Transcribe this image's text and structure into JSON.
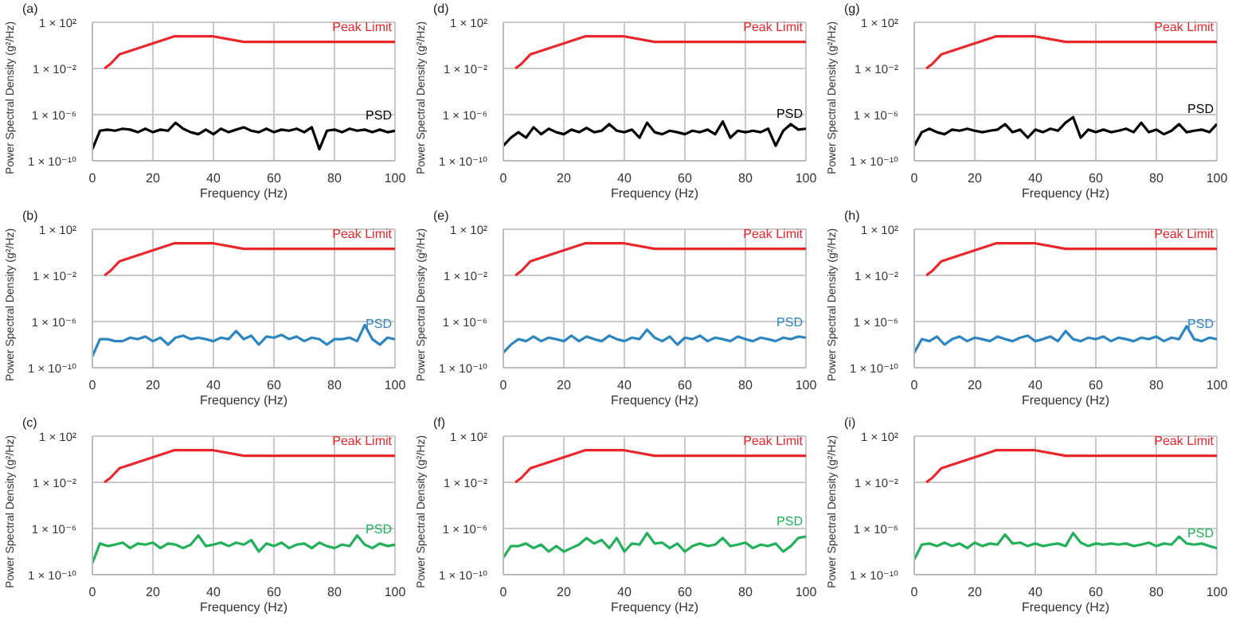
{
  "chart_data": [
    {
      "type": "line",
      "title": "(a)",
      "xlabel": "Frequency (Hz)",
      "ylabel": "Power Spectral Density (g²/Hz)",
      "xlim": [
        0,
        100
      ],
      "xticks": [
        0,
        20,
        40,
        60,
        80,
        100
      ],
      "ylim": [
        1e-10,
        100
      ],
      "yticks": [
        {
          "value": 1e-10,
          "label": "1 × 10⁻¹⁰"
        },
        {
          "value": 1e-06,
          "label": "1 × 10⁻⁶"
        },
        {
          "value": 0.01,
          "label": "1 × 10⁻²"
        },
        {
          "value": 100,
          "label": "1 × 10²"
        }
      ],
      "log": "y",
      "grid": true,
      "series": [
        {
          "name": "Peak Limit",
          "color": "#e8262b",
          "x": [
            4,
            6,
            9,
            27,
            40,
            50,
            100
          ],
          "values": [
            0.01,
            0.025,
            0.17,
            6,
            6,
            2,
            2
          ]
        },
        {
          "name": "PSD",
          "color": "#000000",
          "x": [
            0,
            2.5,
            5,
            7.5,
            10,
            12.5,
            15,
            17.5,
            20,
            22.5,
            25,
            27.5,
            30,
            32.5,
            35,
            37.5,
            40,
            42.5,
            45,
            47.5,
            50,
            52.5,
            55,
            57.5,
            60,
            62.5,
            65,
            67.5,
            70,
            72.5,
            75,
            77.5,
            80,
            82.5,
            85,
            87.5,
            90,
            92.5,
            95,
            97.5,
            100
          ],
          "values": [
            1e-09,
            4e-08,
            5e-08,
            4e-08,
            6e-08,
            5e-08,
            3e-08,
            6e-08,
            3e-08,
            5e-08,
            4e-08,
            2e-07,
            6e-08,
            3e-08,
            2e-08,
            5e-08,
            2e-08,
            6e-08,
            3e-08,
            5e-08,
            8e-08,
            4e-08,
            3e-08,
            6e-08,
            3e-08,
            5e-08,
            4e-08,
            6e-08,
            3e-08,
            8e-08,
            1e-09,
            4e-08,
            5e-08,
            3e-08,
            6e-08,
            4e-08,
            5e-08,
            3e-08,
            5e-08,
            3e-08,
            4e-08
          ]
        }
      ]
    },
    {
      "type": "line",
      "title": "(d)",
      "xlabel": "Frequency (Hz)",
      "ylabel": "Power Spectral Density (g²/Hz)",
      "xlim": [
        0,
        100
      ],
      "xticks": [
        0,
        20,
        40,
        60,
        80,
        100
      ],
      "ylim": [
        1e-10,
        100
      ],
      "yticks": [
        {
          "value": 1e-10,
          "label": "1 × 10⁻¹⁰"
        },
        {
          "value": 1e-06,
          "label": "1 × 10⁻⁶"
        },
        {
          "value": 0.01,
          "label": "1 × 10⁻²"
        },
        {
          "value": 100,
          "label": "1 × 10²"
        }
      ],
      "log": "y",
      "grid": true,
      "series": [
        {
          "name": "Peak Limit",
          "color": "#e8262b",
          "x": [
            4,
            6,
            9,
            27,
            40,
            50,
            100
          ],
          "values": [
            0.01,
            0.025,
            0.17,
            6,
            6,
            2,
            2
          ]
        },
        {
          "name": "PSD",
          "color": "#000000",
          "x": [
            0,
            2.5,
            5,
            7.5,
            10,
            12.5,
            15,
            17.5,
            20,
            22.5,
            25,
            27.5,
            30,
            32.5,
            35,
            37.5,
            40,
            42.5,
            45,
            47.5,
            50,
            52.5,
            55,
            57.5,
            60,
            62.5,
            65,
            67.5,
            70,
            72.5,
            75,
            77.5,
            80,
            82.5,
            85,
            87.5,
            90,
            92.5,
            95,
            97.5,
            100
          ],
          "values": [
            2e-09,
            1e-08,
            3e-08,
            1e-08,
            8e-08,
            2e-08,
            6e-08,
            3e-08,
            2e-08,
            5e-08,
            3e-08,
            7e-08,
            3e-08,
            4e-08,
            1.5e-07,
            4e-08,
            3e-08,
            5e-08,
            1e-08,
            2e-07,
            3e-08,
            2e-08,
            4e-08,
            3e-08,
            2e-08,
            4e-08,
            3e-08,
            5e-08,
            2e-08,
            2.5e-07,
            1e-08,
            4e-08,
            3e-08,
            4e-08,
            3e-08,
            6e-08,
            2e-09,
            4e-08,
            1.5e-07,
            5e-08,
            6e-08
          ]
        }
      ]
    },
    {
      "type": "line",
      "title": "(g)",
      "xlabel": "Frequency (Hz)",
      "ylabel": "Power Spectral Density (g²/Hz)",
      "xlim": [
        0,
        100
      ],
      "xticks": [
        0,
        20,
        40,
        60,
        80,
        100
      ],
      "ylim": [
        1e-10,
        100
      ],
      "yticks": [
        {
          "value": 1e-10,
          "label": "1 × 10⁻¹⁰"
        },
        {
          "value": 1e-06,
          "label": "1 × 10⁻⁶"
        },
        {
          "value": 0.01,
          "label": "1 × 10⁻²"
        },
        {
          "value": 100,
          "label": "1 × 10²"
        }
      ],
      "log": "y",
      "grid": true,
      "series": [
        {
          "name": "Peak Limit",
          "color": "#e8262b",
          "x": [
            4,
            6,
            9,
            27,
            40,
            50,
            100
          ],
          "values": [
            0.01,
            0.025,
            0.17,
            6,
            6,
            2,
            2
          ]
        },
        {
          "name": "PSD",
          "color": "#000000",
          "x": [
            0,
            2.5,
            5,
            7.5,
            10,
            12.5,
            15,
            17.5,
            20,
            22.5,
            25,
            27.5,
            30,
            32.5,
            35,
            37.5,
            40,
            42.5,
            45,
            47.5,
            50,
            52.5,
            55,
            57.5,
            60,
            62.5,
            65,
            67.5,
            70,
            72.5,
            75,
            77.5,
            80,
            82.5,
            85,
            87.5,
            90,
            92.5,
            95,
            97.5,
            100
          ],
          "values": [
            2e-09,
            3e-08,
            6e-08,
            3e-08,
            2e-08,
            5e-08,
            4e-08,
            6e-08,
            4e-08,
            3e-08,
            4e-08,
            5e-08,
            1.5e-07,
            3e-08,
            5e-08,
            1e-08,
            5e-08,
            3e-08,
            6e-08,
            4e-08,
            2e-07,
            6e-07,
            1e-08,
            5e-08,
            3e-08,
            5e-08,
            3e-08,
            4e-08,
            6e-08,
            3e-08,
            2e-07,
            3e-08,
            5e-08,
            2e-08,
            4e-08,
            1.5e-07,
            3e-08,
            4e-08,
            5e-08,
            3e-08,
            1.5e-07
          ]
        }
      ]
    },
    {
      "type": "line",
      "title": "(b)",
      "xlabel": "Frequency (Hz)",
      "ylabel": "Power Spectral Density (g²/Hz)",
      "xlim": [
        0,
        100
      ],
      "xticks": [
        0,
        20,
        40,
        60,
        80,
        100
      ],
      "ylim": [
        1e-10,
        100
      ],
      "yticks": [
        {
          "value": 1e-10,
          "label": "1 × 10⁻¹⁰"
        },
        {
          "value": 1e-06,
          "label": "1 × 10⁻⁶"
        },
        {
          "value": 0.01,
          "label": "1 × 10⁻²"
        },
        {
          "value": 100,
          "label": "1 × 10²"
        }
      ],
      "log": "y",
      "grid": true,
      "series": [
        {
          "name": "Peak Limit",
          "color": "#e8262b",
          "x": [
            4,
            6,
            9,
            27,
            40,
            50,
            100
          ],
          "values": [
            0.01,
            0.025,
            0.17,
            6,
            6,
            2,
            2
          ]
        },
        {
          "name": "PSD",
          "color": "#2e86c1",
          "x": [
            0,
            2.5,
            5,
            7.5,
            10,
            12.5,
            15,
            17.5,
            20,
            22.5,
            25,
            27.5,
            30,
            32.5,
            35,
            37.5,
            40,
            42.5,
            45,
            47.5,
            50,
            52.5,
            55,
            57.5,
            60,
            62.5,
            65,
            67.5,
            70,
            72.5,
            75,
            77.5,
            80,
            82.5,
            85,
            87.5,
            90,
            92.5,
            95,
            97.5,
            100
          ],
          "values": [
            1e-09,
            3e-08,
            3e-08,
            2e-08,
            2e-08,
            4e-08,
            3e-08,
            5e-08,
            2e-08,
            4e-08,
            1e-08,
            4e-08,
            6e-08,
            3e-08,
            4e-08,
            3e-08,
            2e-08,
            4e-08,
            3e-08,
            1.5e-07,
            3e-08,
            6e-08,
            1e-08,
            5e-08,
            4e-08,
            7e-08,
            3e-08,
            5e-08,
            2e-08,
            4e-08,
            3e-08,
            1e-08,
            3e-08,
            3e-08,
            4e-08,
            2e-08,
            5e-07,
            3e-08,
            1e-08,
            4e-08,
            3e-08
          ]
        }
      ]
    },
    {
      "type": "line",
      "title": "(e)",
      "xlabel": "Frequency (Hz)",
      "ylabel": "Power Spectral Density (g²/Hz)",
      "xlim": [
        0,
        100
      ],
      "xticks": [
        0,
        20,
        40,
        60,
        80,
        100
      ],
      "ylim": [
        1e-10,
        100
      ],
      "yticks": [
        {
          "value": 1e-10,
          "label": "1 × 10⁻¹⁰"
        },
        {
          "value": 1e-06,
          "label": "1 × 10⁻⁶"
        },
        {
          "value": 0.01,
          "label": "1 × 10⁻²"
        },
        {
          "value": 100,
          "label": "1 × 10²"
        }
      ],
      "log": "y",
      "grid": true,
      "series": [
        {
          "name": "Peak Limit",
          "color": "#e8262b",
          "x": [
            4,
            6,
            9,
            27,
            40,
            50,
            100
          ],
          "values": [
            0.01,
            0.025,
            0.17,
            6,
            6,
            2,
            2
          ]
        },
        {
          "name": "PSD",
          "color": "#2e86c1",
          "x": [
            0,
            2.5,
            5,
            7.5,
            10,
            12.5,
            15,
            17.5,
            20,
            22.5,
            25,
            27.5,
            30,
            32.5,
            35,
            37.5,
            40,
            42.5,
            45,
            47.5,
            50,
            52.5,
            55,
            57.5,
            60,
            62.5,
            65,
            67.5,
            70,
            72.5,
            75,
            77.5,
            80,
            82.5,
            85,
            87.5,
            90,
            92.5,
            95,
            97.5,
            100
          ],
          "values": [
            2e-09,
            1e-08,
            3e-08,
            2e-08,
            5e-08,
            2e-08,
            4e-08,
            3e-08,
            2e-08,
            6e-08,
            2e-08,
            5e-08,
            3e-08,
            2e-08,
            6e-08,
            3e-08,
            2e-08,
            4e-08,
            3e-08,
            2e-07,
            4e-08,
            2e-08,
            5e-08,
            1e-08,
            4e-08,
            3e-08,
            6e-08,
            2e-08,
            4e-08,
            3e-08,
            2e-08,
            5e-08,
            3e-08,
            2e-08,
            4e-08,
            3e-08,
            2e-08,
            4e-08,
            3e-08,
            5e-08,
            4e-08
          ]
        }
      ]
    },
    {
      "type": "line",
      "title": "(h)",
      "xlabel": "Frequency (Hz)",
      "ylabel": "Power Spectral Density (g²/Hz)",
      "xlim": [
        0,
        100
      ],
      "xticks": [
        0,
        20,
        40,
        60,
        80,
        100
      ],
      "ylim": [
        1e-10,
        100
      ],
      "yticks": [
        {
          "value": 1e-10,
          "label": "1 × 10⁻¹⁰"
        },
        {
          "value": 1e-06,
          "label": "1 × 10⁻⁶"
        },
        {
          "value": 0.01,
          "label": "1 × 10⁻²"
        },
        {
          "value": 100,
          "label": "1 × 10²"
        }
      ],
      "log": "y",
      "grid": true,
      "series": [
        {
          "name": "Peak Limit",
          "color": "#e8262b",
          "x": [
            4,
            6,
            9,
            27,
            40,
            50,
            100
          ],
          "values": [
            0.01,
            0.025,
            0.17,
            6,
            6,
            2,
            2
          ]
        },
        {
          "name": "PSD",
          "color": "#2e86c1",
          "x": [
            0,
            2.5,
            5,
            7.5,
            10,
            12.5,
            15,
            17.5,
            20,
            22.5,
            25,
            27.5,
            30,
            32.5,
            35,
            37.5,
            40,
            42.5,
            45,
            47.5,
            50,
            52.5,
            55,
            57.5,
            60,
            62.5,
            65,
            67.5,
            70,
            72.5,
            75,
            77.5,
            80,
            82.5,
            85,
            87.5,
            90,
            92.5,
            95,
            97.5,
            100
          ],
          "values": [
            2e-09,
            3e-08,
            2e-08,
            5e-08,
            1e-08,
            3e-08,
            5e-08,
            2e-08,
            4e-08,
            3e-08,
            2e-08,
            5e-08,
            3e-08,
            2e-08,
            4e-08,
            6e-08,
            2e-08,
            3e-08,
            5e-08,
            2e-08,
            1.5e-07,
            3e-08,
            2e-08,
            4e-08,
            3e-08,
            5e-08,
            2e-08,
            4e-08,
            3e-08,
            2e-08,
            4e-08,
            3e-08,
            5e-08,
            2e-08,
            4e-08,
            3e-08,
            4e-07,
            3e-08,
            2e-08,
            4e-08,
            3e-08
          ]
        }
      ]
    },
    {
      "type": "line",
      "title": "(c)",
      "xlabel": "Frequency (Hz)",
      "ylabel": "Power Spectral Density (g²/Hz)",
      "xlim": [
        0,
        100
      ],
      "xticks": [
        0,
        20,
        40,
        60,
        80,
        100
      ],
      "ylim": [
        1e-10,
        100
      ],
      "yticks": [
        {
          "value": 1e-10,
          "label": "1 × 10⁻¹⁰"
        },
        {
          "value": 1e-06,
          "label": "1 × 10⁻⁶"
        },
        {
          "value": 0.01,
          "label": "1 × 10⁻²"
        },
        {
          "value": 100,
          "label": "1 × 10²"
        }
      ],
      "log": "y",
      "grid": true,
      "series": [
        {
          "name": "Peak Limit",
          "color": "#e8262b",
          "x": [
            4,
            6,
            9,
            27,
            40,
            50,
            100
          ],
          "values": [
            0.01,
            0.025,
            0.17,
            6,
            6,
            2,
            2
          ]
        },
        {
          "name": "PSD",
          "color": "#22b05b",
          "x": [
            0,
            2.5,
            5,
            7.5,
            10,
            12.5,
            15,
            17.5,
            20,
            22.5,
            25,
            27.5,
            30,
            32.5,
            35,
            37.5,
            40,
            42.5,
            45,
            47.5,
            50,
            52.5,
            55,
            57.5,
            60,
            62.5,
            65,
            67.5,
            70,
            72.5,
            75,
            77.5,
            80,
            82.5,
            85,
            87.5,
            90,
            92.5,
            95,
            97.5,
            100
          ],
          "values": [
            1e-09,
            5e-08,
            3e-08,
            4e-08,
            6e-08,
            2e-08,
            5e-08,
            4e-08,
            6e-08,
            2e-08,
            5e-08,
            4e-08,
            2e-08,
            4e-08,
            2.5e-07,
            3e-08,
            4e-08,
            6e-08,
            3e-08,
            6e-08,
            4e-08,
            1e-07,
            1e-08,
            5e-08,
            3e-08,
            6e-08,
            2e-08,
            4e-08,
            5e-08,
            2e-08,
            6e-08,
            3e-08,
            2e-08,
            4e-08,
            3e-08,
            2.5e-07,
            4e-08,
            2e-08,
            5e-08,
            3e-08,
            4e-08
          ]
        }
      ]
    },
    {
      "type": "line",
      "title": "(f)",
      "xlabel": "Frequency (Hz)",
      "ylabel": "Power Spectral Density (g²/Hz)",
      "xlim": [
        0,
        100
      ],
      "xticks": [
        0,
        20,
        40,
        60,
        80,
        100
      ],
      "ylim": [
        1e-10,
        100
      ],
      "yticks": [
        {
          "value": 1e-10,
          "label": "1 × 10⁻¹⁰"
        },
        {
          "value": 1e-06,
          "label": "1 × 10⁻⁶"
        },
        {
          "value": 0.01,
          "label": "1 × 10⁻²"
        },
        {
          "value": 100,
          "label": "1 × 10²"
        }
      ],
      "log": "y",
      "grid": true,
      "series": [
        {
          "name": "Peak Limit",
          "color": "#e8262b",
          "x": [
            4,
            6,
            9,
            27,
            40,
            50,
            100
          ],
          "values": [
            0.01,
            0.025,
            0.17,
            6,
            6,
            2,
            2
          ]
        },
        {
          "name": "PSD",
          "color": "#22b05b",
          "x": [
            0,
            2.5,
            5,
            7.5,
            10,
            12.5,
            15,
            17.5,
            20,
            22.5,
            25,
            27.5,
            30,
            32.5,
            35,
            37.5,
            40,
            42.5,
            45,
            47.5,
            50,
            52.5,
            55,
            57.5,
            60,
            62.5,
            65,
            67.5,
            70,
            72.5,
            75,
            77.5,
            80,
            82.5,
            85,
            87.5,
            90,
            92.5,
            95,
            97.5,
            100
          ],
          "values": [
            3e-09,
            3e-08,
            3e-08,
            5e-08,
            2e-08,
            4e-08,
            1e-08,
            3e-08,
            1e-08,
            2e-08,
            4e-08,
            1.5e-07,
            5e-08,
            1e-07,
            2e-08,
            1.5e-07,
            1e-08,
            5e-08,
            4e-08,
            4e-07,
            5e-08,
            6e-08,
            2e-08,
            5e-08,
            1e-08,
            3e-08,
            5e-08,
            3e-08,
            4e-08,
            1.5e-07,
            3e-08,
            4e-08,
            6e-08,
            2e-08,
            4e-08,
            3e-08,
            5e-08,
            1e-08,
            3e-08,
            1.5e-07,
            2e-07
          ]
        }
      ]
    },
    {
      "type": "line",
      "title": "(i)",
      "xlabel": "Frequency (Hz)",
      "ylabel": "Power Spectral Density (g²/Hz)",
      "xlim": [
        0,
        100
      ],
      "xticks": [
        0,
        20,
        40,
        60,
        80,
        100
      ],
      "ylim": [
        1e-10,
        100
      ],
      "yticks": [
        {
          "value": 1e-10,
          "label": "1 × 10⁻¹⁰"
        },
        {
          "value": 1e-06,
          "label": "1 × 10⁻⁶"
        },
        {
          "value": 0.01,
          "label": "1 × 10⁻²"
        },
        {
          "value": 100,
          "label": "1 × 10²"
        }
      ],
      "log": "y",
      "grid": true,
      "series": [
        {
          "name": "Peak Limit",
          "color": "#e8262b",
          "x": [
            4,
            6,
            9,
            27,
            40,
            50,
            100
          ],
          "values": [
            0.01,
            0.025,
            0.17,
            6,
            6,
            2,
            2
          ]
        },
        {
          "name": "PSD",
          "color": "#22b05b",
          "x": [
            0,
            2.5,
            5,
            7.5,
            10,
            12.5,
            15,
            17.5,
            20,
            22.5,
            25,
            27.5,
            30,
            32.5,
            35,
            37.5,
            40,
            42.5,
            45,
            47.5,
            50,
            52.5,
            55,
            57.5,
            60,
            62.5,
            65,
            67.5,
            70,
            72.5,
            75,
            77.5,
            80,
            82.5,
            85,
            87.5,
            90,
            92.5,
            95,
            97.5,
            100
          ],
          "values": [
            2e-09,
            4e-08,
            5e-08,
            3e-08,
            6e-08,
            3e-08,
            5e-08,
            2e-08,
            6e-08,
            3e-08,
            5e-08,
            4e-08,
            3e-07,
            5e-08,
            6e-08,
            3e-08,
            5e-08,
            3e-08,
            4e-08,
            5e-08,
            3e-08,
            4e-07,
            6e-08,
            3e-08,
            5e-08,
            4e-08,
            5e-08,
            4e-08,
            5e-08,
            3e-08,
            4e-08,
            6e-08,
            3e-08,
            5e-08,
            4e-08,
            2e-07,
            5e-08,
            4e-08,
            5e-08,
            3e-08,
            2e-08
          ]
        }
      ]
    }
  ]
}
